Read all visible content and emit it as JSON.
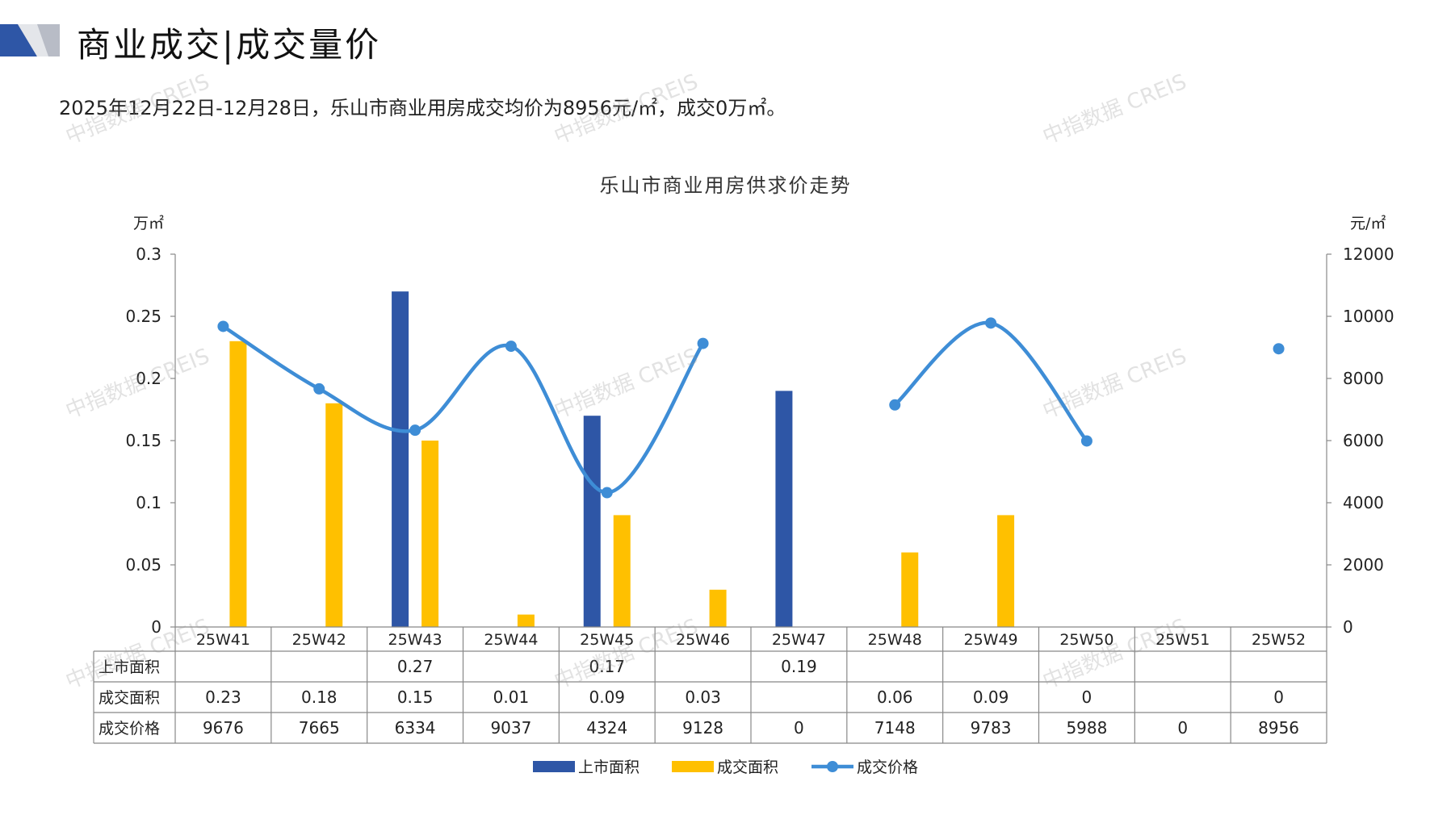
{
  "header": {
    "title": "商业成交|成交量价",
    "summary": "2025年12月22日-12月28日，乐山市商业用房成交均价为8956元/㎡，成交0万㎡。"
  },
  "watermark": "中指数据 CREIS",
  "colors": {
    "listed": "#2E56A6",
    "deal_area": "#FFC000",
    "deal_price": "#3E8DD6",
    "axis": "#888888",
    "grid_text": "#222222"
  },
  "chart_data": {
    "type": "bar",
    "title": "乐山市商业用房供求价走势",
    "categories": [
      "25W41",
      "25W42",
      "25W43",
      "25W44",
      "25W45",
      "25W46",
      "25W47",
      "25W48",
      "25W49",
      "25W50",
      "25W51",
      "25W52"
    ],
    "y_left": {
      "unit": "万㎡",
      "min": 0,
      "max": 0.3,
      "ticks": [
        "0",
        "0.05",
        "0.1",
        "0.15",
        "0.2",
        "0.25",
        "0.3"
      ]
    },
    "y_right": {
      "unit": "元/㎡",
      "min": 0,
      "max": 12000,
      "ticks": [
        "0",
        "2000",
        "4000",
        "6000",
        "8000",
        "10000",
        "12000"
      ]
    },
    "series": [
      {
        "name": "上市面积",
        "type": "bar",
        "axis": "left",
        "values": [
          null,
          null,
          0.27,
          null,
          0.17,
          null,
          0.19,
          null,
          null,
          null,
          null,
          null
        ],
        "labels": [
          "",
          "",
          "0.27",
          "",
          "0.17",
          "",
          "0.19",
          "",
          "",
          "",
          "",
          ""
        ]
      },
      {
        "name": "成交面积",
        "type": "bar",
        "axis": "left",
        "values": [
          0.23,
          0.18,
          0.15,
          0.01,
          0.09,
          0.03,
          null,
          0.06,
          0.09,
          0,
          null,
          0
        ],
        "labels": [
          "0.23",
          "0.18",
          "0.15",
          "0.01",
          "0.09",
          "0.03",
          "",
          "0.06",
          "0.09",
          "0",
          "",
          "0"
        ]
      },
      {
        "name": "成交价格",
        "type": "line",
        "axis": "right",
        "values": [
          9676,
          7665,
          6334,
          9037,
          4324,
          9128,
          0,
          7148,
          9783,
          5988,
          0,
          8956
        ],
        "labels": [
          "9676",
          "7665",
          "6334",
          "9037",
          "4324",
          "9128",
          "0",
          "7148",
          "9783",
          "5988",
          "0",
          "8956"
        ],
        "plotted": [
          true,
          true,
          true,
          true,
          true,
          true,
          false,
          true,
          true,
          true,
          false,
          true
        ]
      }
    ],
    "legend": "bottom-center",
    "data_table": true
  }
}
